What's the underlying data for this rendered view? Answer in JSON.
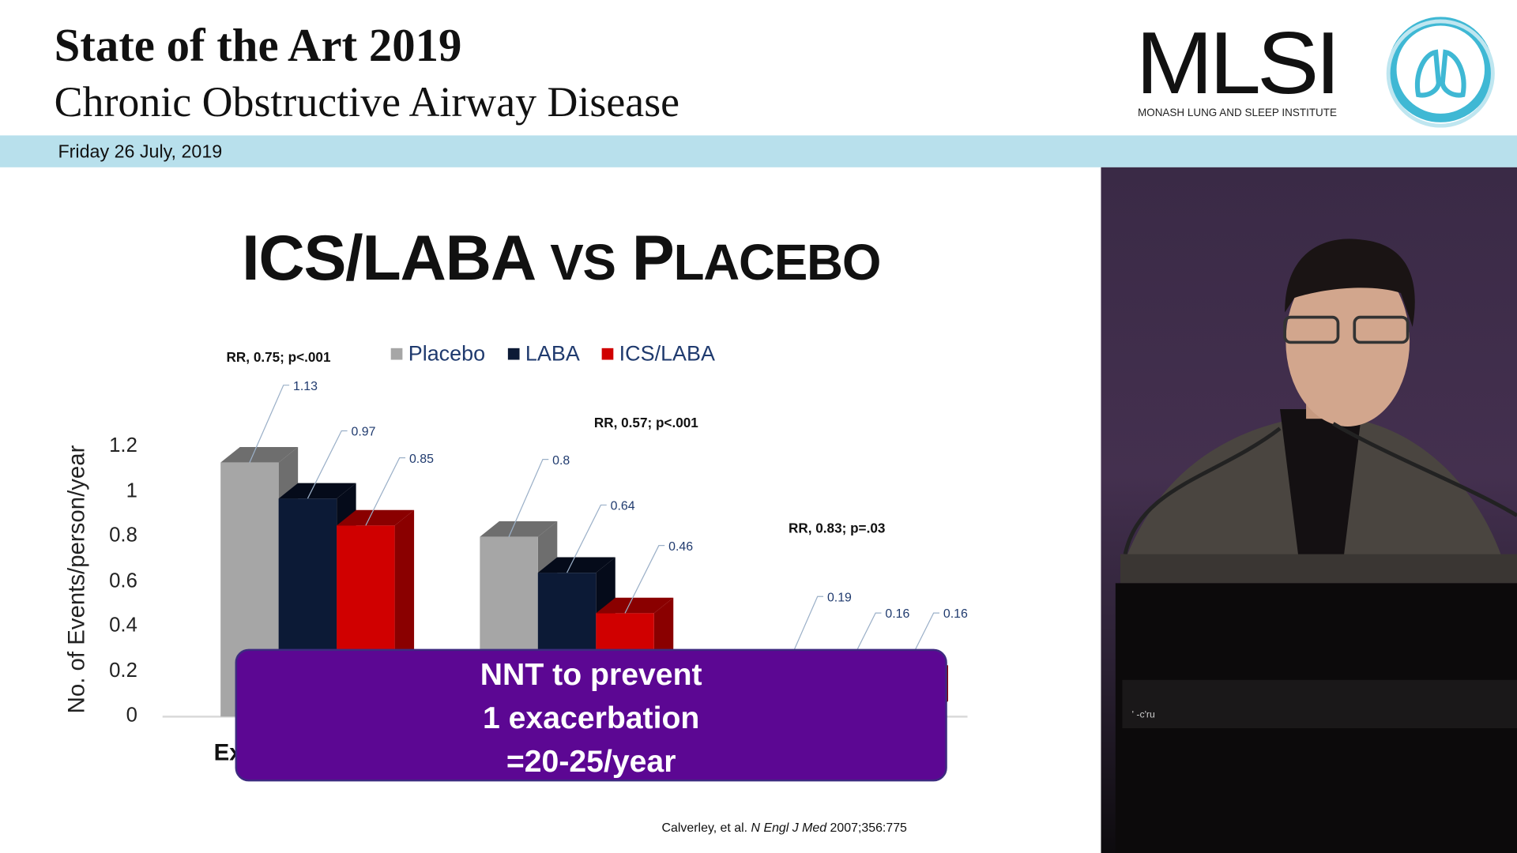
{
  "header": {
    "title": "State of the Art 2019",
    "subtitle": "Chronic Obstructive Airway Disease",
    "logo_text": "MLSI",
    "logo_subtitle": "MONASH LUNG AND SLEEP INSTITUTE",
    "date": "Friday 26 July, 2019"
  },
  "slide": {
    "title_main": "ICS/LABA",
    "title_vs": "VS",
    "title_p": "P",
    "title_rest": "LACEBO",
    "nnt_line1": "NNT to prevent",
    "nnt_line2": "1 exacerbation",
    "nnt_line3": "=20-25/year",
    "citation_authors": "Calverley, et al.",
    "citation_journal": "N Engl J Med",
    "citation_ref": "2007;356:775",
    "category_partial": "Ex"
  },
  "video": {
    "overlay_text": "' -c'ru"
  },
  "chart_data": {
    "type": "bar",
    "ylabel": "No. of Events/person/year",
    "ylim": [
      0,
      1.2
    ],
    "yticks": [
      "0",
      "0.2",
      "0.4",
      "0.6",
      "0.8",
      "1",
      "1.2"
    ],
    "series": [
      {
        "name": "Placebo",
        "color": "#a6a6a6",
        "values": [
          1.13,
          0.8,
          0.19
        ]
      },
      {
        "name": "LABA",
        "color": "#0c1a36",
        "values": [
          0.97,
          0.64,
          0.16
        ]
      },
      {
        "name": "ICS/LABA",
        "color": "#d00000",
        "values": [
          0.85,
          0.46,
          0.16
        ]
      }
    ],
    "data_labels": [
      [
        "1.13",
        "0.97",
        "0.85"
      ],
      [
        "0.8",
        "0.64",
        "0.46"
      ],
      [
        "0.19",
        "0.16",
        "0.16"
      ]
    ],
    "annotations": [
      "RR, 0.75; p<.001",
      "RR, 0.57; p<.001",
      "RR, 0.83; p=.03"
    ]
  }
}
